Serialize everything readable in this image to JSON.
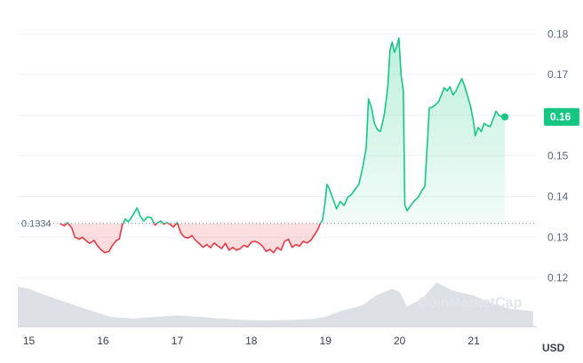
{
  "chart_data": {
    "type": "line",
    "x_labels": [
      "15",
      "16",
      "17",
      "18",
      "19",
      "20",
      "21"
    ],
    "y_ticks": [
      "0.12",
      "0.13",
      "0.14",
      "0.15",
      "0.16",
      "0.17",
      "0.18"
    ],
    "ylim": [
      0.108,
      0.184
    ],
    "xlim": [
      14.85,
      21.85
    ],
    "reference_value": 0.1334,
    "reference_label": "0.1334",
    "current_price_label": "0.16",
    "currency_label": "USD",
    "watermark": "CoinMarketCap",
    "colors": {
      "up": "#16c784",
      "down": "#ea3943",
      "volume": "#d7dae0",
      "badge": "#16c784"
    },
    "series": [
      {
        "values": [
          [
            15.42,
            0.1334
          ],
          [
            15.48,
            0.1328
          ],
          [
            15.52,
            0.1336
          ],
          [
            15.58,
            0.1322
          ],
          [
            15.62,
            0.13
          ],
          [
            15.68,
            0.1295
          ],
          [
            15.72,
            0.13
          ],
          [
            15.78,
            0.129
          ],
          [
            15.82,
            0.1285
          ],
          [
            15.88,
            0.1292
          ],
          [
            15.92,
            0.128
          ],
          [
            15.98,
            0.1268
          ],
          [
            16.02,
            0.1262
          ],
          [
            16.08,
            0.1265
          ],
          [
            16.12,
            0.1278
          ],
          [
            16.18,
            0.1292
          ],
          [
            16.22,
            0.1296
          ],
          [
            16.26,
            0.133
          ],
          [
            16.3,
            0.1345
          ],
          [
            16.34,
            0.1338
          ],
          [
            16.38,
            0.1348
          ],
          [
            16.42,
            0.136
          ],
          [
            16.46,
            0.1372
          ],
          [
            16.5,
            0.1352
          ],
          [
            16.55,
            0.134
          ],
          [
            16.6,
            0.135
          ],
          [
            16.65,
            0.1348
          ],
          [
            16.7,
            0.133
          ],
          [
            16.74,
            0.1336
          ],
          [
            16.78,
            0.134
          ],
          [
            16.82,
            0.1332
          ],
          [
            16.86,
            0.1336
          ],
          [
            16.9,
            0.1332
          ],
          [
            16.95,
            0.1325
          ],
          [
            17.0,
            0.1336
          ],
          [
            17.05,
            0.131
          ],
          [
            17.1,
            0.13
          ],
          [
            17.15,
            0.1298
          ],
          [
            17.2,
            0.1304
          ],
          [
            17.25,
            0.1292
          ],
          [
            17.3,
            0.1284
          ],
          [
            17.35,
            0.1275
          ],
          [
            17.4,
            0.1282
          ],
          [
            17.45,
            0.1274
          ],
          [
            17.5,
            0.1286
          ],
          [
            17.55,
            0.1278
          ],
          [
            17.6,
            0.1272
          ],
          [
            17.65,
            0.1285
          ],
          [
            17.7,
            0.1268
          ],
          [
            17.75,
            0.1275
          ],
          [
            17.8,
            0.1268
          ],
          [
            17.85,
            0.1272
          ],
          [
            17.9,
            0.128
          ],
          [
            17.95,
            0.1276
          ],
          [
            18.0,
            0.1288
          ],
          [
            18.05,
            0.129
          ],
          [
            18.1,
            0.1286
          ],
          [
            18.15,
            0.1278
          ],
          [
            18.2,
            0.1265
          ],
          [
            18.25,
            0.127
          ],
          [
            18.3,
            0.1262
          ],
          [
            18.35,
            0.1275
          ],
          [
            18.4,
            0.1268
          ],
          [
            18.45,
            0.129
          ],
          [
            18.5,
            0.1295
          ],
          [
            18.55,
            0.1275
          ],
          [
            18.6,
            0.1282
          ],
          [
            18.65,
            0.1278
          ],
          [
            18.7,
            0.129
          ],
          [
            18.75,
            0.1286
          ],
          [
            18.8,
            0.1292
          ],
          [
            18.85,
            0.1305
          ],
          [
            18.9,
            0.132
          ],
          [
            18.93,
            0.1334
          ],
          [
            18.96,
            0.1342
          ],
          [
            18.99,
            0.138
          ],
          [
            19.02,
            0.143
          ],
          [
            19.05,
            0.142
          ],
          [
            19.1,
            0.1395
          ],
          [
            19.15,
            0.137
          ],
          [
            19.2,
            0.1388
          ],
          [
            19.25,
            0.1378
          ],
          [
            19.3,
            0.1398
          ],
          [
            19.35,
            0.1405
          ],
          [
            19.4,
            0.1418
          ],
          [
            19.45,
            0.143
          ],
          [
            19.5,
            0.147
          ],
          [
            19.55,
            0.152
          ],
          [
            19.58,
            0.164
          ],
          [
            19.62,
            0.162
          ],
          [
            19.66,
            0.158
          ],
          [
            19.7,
            0.1565
          ],
          [
            19.74,
            0.156
          ],
          [
            19.78,
            0.159
          ],
          [
            19.8,
            0.161
          ],
          [
            19.84,
            0.167
          ],
          [
            19.87,
            0.176
          ],
          [
            19.9,
            0.178
          ],
          [
            19.93,
            0.1755
          ],
          [
            19.96,
            0.1768
          ],
          [
            19.99,
            0.179
          ],
          [
            20.02,
            0.17
          ],
          [
            20.05,
            0.166
          ],
          [
            20.07,
            0.138
          ],
          [
            20.1,
            0.1365
          ],
          [
            20.15,
            0.1378
          ],
          [
            20.2,
            0.139
          ],
          [
            20.25,
            0.1398
          ],
          [
            20.3,
            0.1415
          ],
          [
            20.34,
            0.1425
          ],
          [
            20.38,
            0.155
          ],
          [
            20.4,
            0.1618
          ],
          [
            20.44,
            0.162
          ],
          [
            20.48,
            0.1625
          ],
          [
            20.52,
            0.1632
          ],
          [
            20.56,
            0.1648
          ],
          [
            20.6,
            0.1668
          ],
          [
            20.64,
            0.166
          ],
          [
            20.68,
            0.167
          ],
          [
            20.72,
            0.165
          ],
          [
            20.76,
            0.166
          ],
          [
            20.8,
            0.1676
          ],
          [
            20.84,
            0.169
          ],
          [
            20.88,
            0.167
          ],
          [
            20.92,
            0.1645
          ],
          [
            20.96,
            0.162
          ],
          [
            21.0,
            0.158
          ],
          [
            21.02,
            0.155
          ],
          [
            21.06,
            0.157
          ],
          [
            21.1,
            0.156
          ],
          [
            21.14,
            0.158
          ],
          [
            21.18,
            0.1575
          ],
          [
            21.22,
            0.1572
          ],
          [
            21.26,
            0.159
          ],
          [
            21.3,
            0.161
          ],
          [
            21.34,
            0.16
          ],
          [
            21.38,
            0.1596
          ],
          [
            21.42,
            0.1596
          ]
        ]
      }
    ],
    "volume": [
      [
        14.85,
        0.9
      ],
      [
        15.0,
        0.85
      ],
      [
        15.2,
        0.72
      ],
      [
        15.5,
        0.55
      ],
      [
        15.8,
        0.38
      ],
      [
        16.1,
        0.22
      ],
      [
        16.4,
        0.18
      ],
      [
        16.7,
        0.22
      ],
      [
        17.0,
        0.25
      ],
      [
        17.3,
        0.22
      ],
      [
        17.6,
        0.18
      ],
      [
        17.9,
        0.15
      ],
      [
        18.2,
        0.14
      ],
      [
        18.5,
        0.15
      ],
      [
        18.8,
        0.17
      ],
      [
        19.0,
        0.22
      ],
      [
        19.2,
        0.35
      ],
      [
        19.5,
        0.48
      ],
      [
        19.7,
        0.72
      ],
      [
        19.9,
        0.85
      ],
      [
        20.0,
        0.78
      ],
      [
        20.1,
        0.45
      ],
      [
        20.3,
        0.62
      ],
      [
        20.5,
        1.0
      ],
      [
        20.7,
        0.82
      ],
      [
        21.0,
        0.7
      ],
      [
        21.2,
        0.55
      ],
      [
        21.5,
        0.4
      ],
      [
        21.8,
        0.35
      ]
    ]
  }
}
